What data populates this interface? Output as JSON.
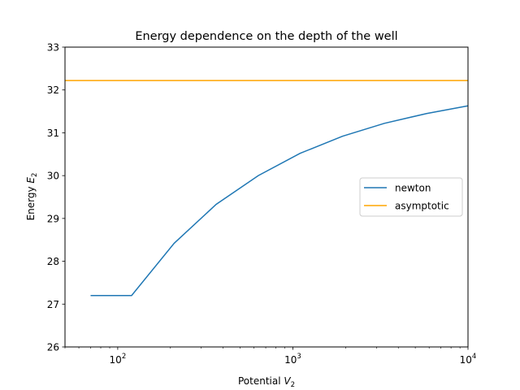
{
  "chart_data": {
    "type": "line",
    "title": "Energy dependence on the depth of the well",
    "xlabel": "Potential",
    "xlabel_symbol": "V",
    "xlabel_sub": "2",
    "ylabel": "Energy",
    "ylabel_symbol": "E",
    "ylabel_sub": "2",
    "x_scale": "log",
    "xlim": [
      50,
      10000
    ],
    "ylim": [
      26,
      33
    ],
    "x_major_ticks": [
      100,
      1000,
      10000
    ],
    "x_major_tick_labels": [
      {
        "base": "10",
        "exp": "2"
      },
      {
        "base": "10",
        "exp": "3"
      },
      {
        "base": "10",
        "exp": "4"
      }
    ],
    "y_ticks": [
      26,
      27,
      28,
      29,
      30,
      31,
      32,
      33
    ],
    "y_tick_labels": [
      "26",
      "27",
      "28",
      "29",
      "30",
      "31",
      "32",
      "33"
    ],
    "grid": false,
    "legend_position": "center-right",
    "series": [
      {
        "name": "newton",
        "color": "#1f77b4",
        "x": [
          70,
          120,
          210,
          365,
          635,
          1100,
          1920,
          3330,
          5800,
          10000
        ],
        "y": [
          27.2,
          27.2,
          28.42,
          29.33,
          30.0,
          30.52,
          30.92,
          31.22,
          31.45,
          31.63
        ]
      },
      {
        "name": "asymptotic",
        "color": "#ffa500",
        "x": [
          50,
          10000
        ],
        "y": [
          32.22,
          32.22
        ]
      }
    ]
  }
}
